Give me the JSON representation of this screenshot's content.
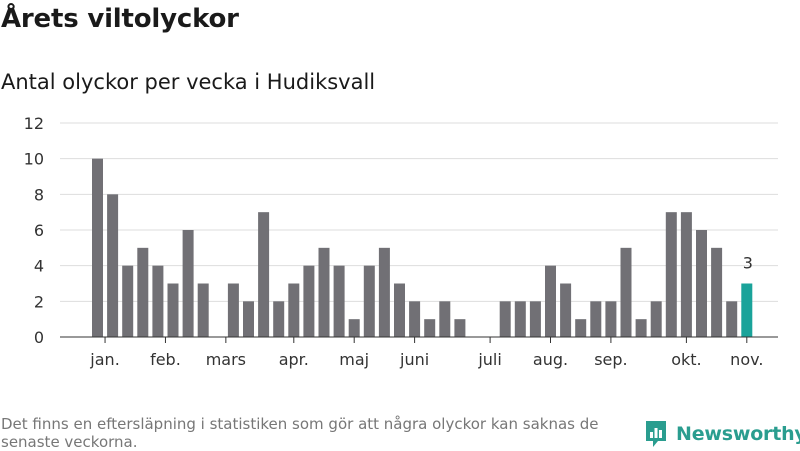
{
  "title": "Årets viltolyckor",
  "subtitle": "Antal olyckor per vecka i Hudiksvall",
  "footnote": "Det finns en eftersläpning i statistiken som gör att några olyckor kan saknas de senaste veckorna.",
  "brand": {
    "name": "Newsworthy",
    "icon": "newsworthy-logo-icon",
    "color": "#2a9d8f"
  },
  "chart_data": {
    "type": "bar",
    "ylim": [
      0,
      12
    ],
    "yticks": [
      0,
      2,
      4,
      6,
      8,
      10,
      12
    ],
    "grid": true,
    "bar_color": "#717075",
    "highlight_color": "#1aa39a",
    "values": [
      10,
      8,
      4,
      5,
      4,
      3,
      6,
      3,
      0,
      3,
      2,
      7,
      2,
      3,
      4,
      5,
      4,
      1,
      4,
      5,
      3,
      2,
      1,
      2,
      1,
      0,
      0,
      2,
      2,
      2,
      4,
      3,
      1,
      2,
      2,
      5,
      1,
      2,
      7,
      7,
      6,
      5,
      2,
      3
    ],
    "highlight_index": 43,
    "highlight_label": "3",
    "month_labels": [
      {
        "label": "jan.",
        "week": 0.5
      },
      {
        "label": "feb.",
        "week": 4.5
      },
      {
        "label": "mars",
        "week": 8.5
      },
      {
        "label": "apr.",
        "week": 13.0
      },
      {
        "label": "maj",
        "week": 17.0
      },
      {
        "label": "juni",
        "week": 21.0
      },
      {
        "label": "juli",
        "week": 26.0
      },
      {
        "label": "aug.",
        "week": 30.0
      },
      {
        "label": "sep.",
        "week": 34.0
      },
      {
        "label": "okt.",
        "week": 39.0
      },
      {
        "label": "nov.",
        "week": 43.0
      }
    ]
  }
}
